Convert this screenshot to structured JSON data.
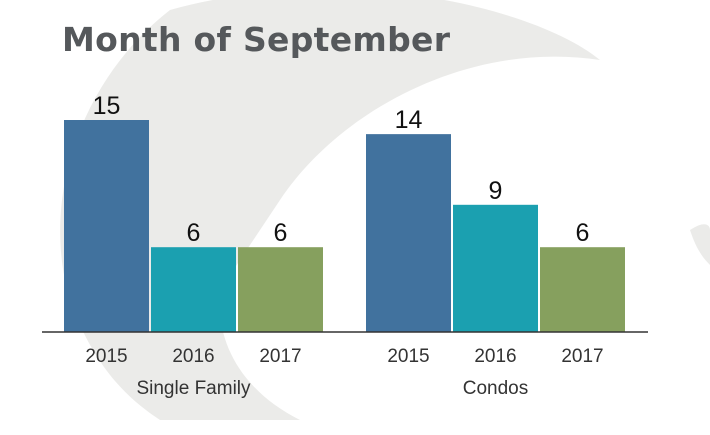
{
  "chart_data": {
    "type": "bar",
    "title": "Month of September",
    "groups": [
      {
        "name": "Single Family",
        "bars": [
          {
            "label": "2015",
            "value": 15,
            "color": "#41729e"
          },
          {
            "label": "2016",
            "value": 6,
            "color": "#1ba0b0"
          },
          {
            "label": "2017",
            "value": 6,
            "color": "#86a05e"
          }
        ]
      },
      {
        "name": "Condos",
        "bars": [
          {
            "label": "2015",
            "value": 14,
            "color": "#41729e"
          },
          {
            "label": "2016",
            "value": 9,
            "color": "#1ba0b0"
          },
          {
            "label": "2017",
            "value": 6,
            "color": "#86a05e"
          }
        ]
      }
    ],
    "ylim": [
      0,
      16.5
    ],
    "grid": false,
    "legend": "none"
  },
  "colors": {
    "title": "#55585b",
    "watermark": "#ebebe9",
    "axis": "#333333"
  }
}
